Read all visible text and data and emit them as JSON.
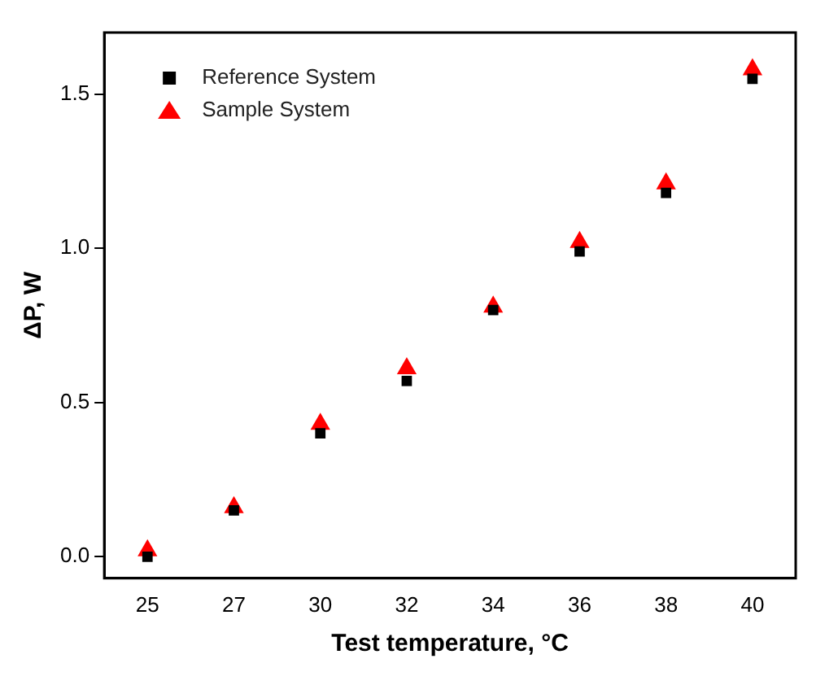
{
  "chart_data": {
    "type": "scatter",
    "xlabel": "Test temperature, °C",
    "ylabel": "ΔP, W",
    "categories": [
      "25",
      "27",
      "30",
      "32",
      "34",
      "36",
      "38",
      "40"
    ],
    "series": [
      {
        "name": "Reference System",
        "color": "#000000",
        "marker": "square",
        "values": [
          0.0,
          0.15,
          0.4,
          0.57,
          0.8,
          0.99,
          1.18,
          1.55
        ]
      },
      {
        "name": "Sample System",
        "color": "#ff0000",
        "marker": "triangle",
        "values": [
          0.02,
          0.16,
          0.43,
          0.61,
          0.81,
          1.02,
          1.21,
          1.58
        ]
      }
    ],
    "ylim": [
      -0.07,
      1.7
    ],
    "yticks": [
      {
        "value": 0,
        "label": "0.0"
      },
      {
        "value": 0.5,
        "label": "0.5"
      },
      {
        "value": 1,
        "label": "1.0"
      },
      {
        "value": 1.5,
        "label": "1.5"
      }
    ],
    "grid": false,
    "legend": "top left"
  }
}
